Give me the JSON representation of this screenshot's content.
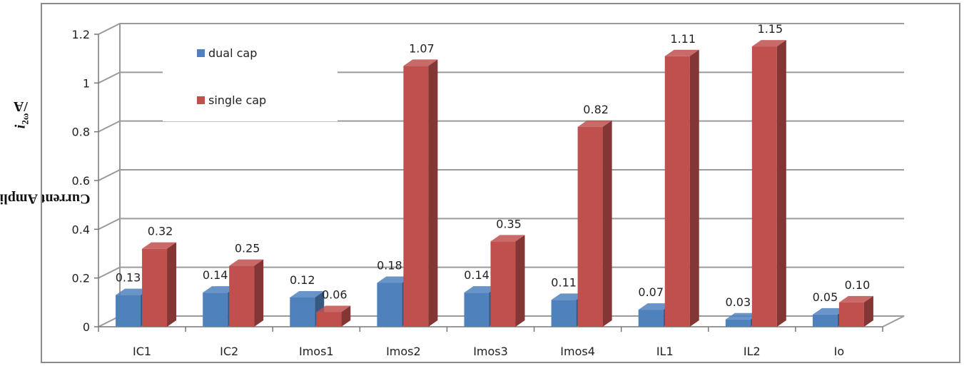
{
  "chart_data": {
    "type": "bar",
    "title": "",
    "xlabel": "",
    "ylabel": {
      "prefix": "Current Amplitude for ",
      "var": "i",
      "sub": "2ω",
      "suffix": " /A"
    },
    "ylim": [
      0,
      1.2
    ],
    "yticks": [
      "0",
      "0.2",
      "0.4",
      "0.6",
      "0.8",
      "1",
      "1.2"
    ],
    "grid": true,
    "legend_position": "top-left",
    "categories": [
      "IC1",
      "IC2",
      "Imos1",
      "Imos2",
      "Imos3",
      "Imos4",
      "IL1",
      "IL2",
      "Io"
    ],
    "series": [
      {
        "name": "dual cap",
        "color": "#4F81BD",
        "values": [
          0.13,
          0.14,
          0.12,
          0.18,
          0.14,
          0.11,
          0.07,
          0.03,
          0.05
        ],
        "labels": [
          "0.13",
          "0.14",
          "0.12",
          "0.18",
          "0.14",
          "0.11",
          "0.07",
          "0.03",
          "0.05"
        ]
      },
      {
        "name": "single cap",
        "color": "#C0504D",
        "values": [
          0.32,
          0.25,
          0.06,
          1.07,
          0.35,
          0.82,
          1.11,
          1.15,
          0.1
        ],
        "labels": [
          "0.32",
          "0.25",
          "0.06",
          "1.07",
          "0.35",
          "0.82",
          "1.11",
          "1.15",
          "0.10"
        ]
      }
    ]
  }
}
